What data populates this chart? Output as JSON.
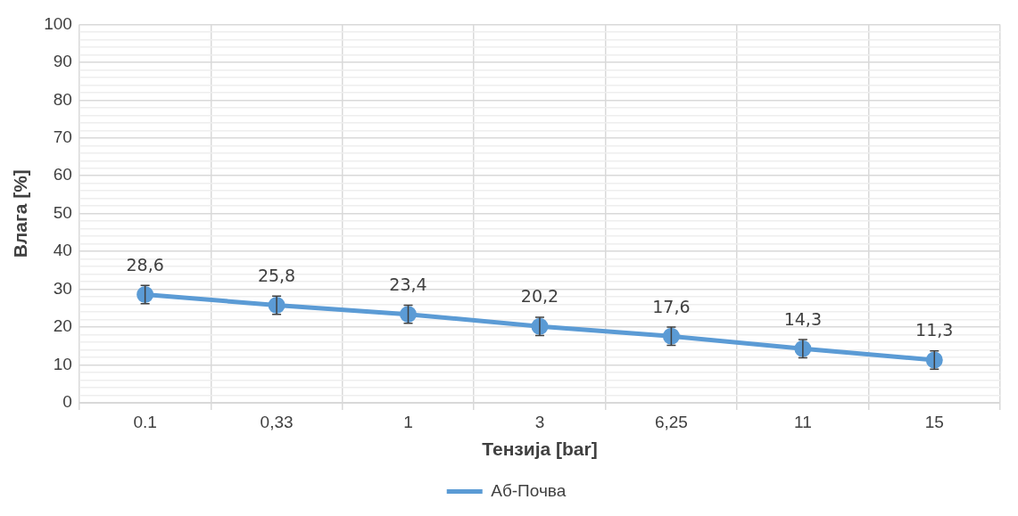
{
  "chart_data": {
    "type": "line",
    "xlabel": "Тензија [bar]",
    "ylabel": "Влага [%]",
    "categories": [
      "0.1",
      "0,33",
      "1",
      "3",
      "6,25",
      "11",
      "15"
    ],
    "series": [
      {
        "name": "Аб-Почва",
        "color": "#5b9bd5",
        "values": [
          28.6,
          25.8,
          23.4,
          20.2,
          17.6,
          14.3,
          11.3
        ],
        "errors": [
          2.4,
          2.4,
          2.4,
          2.4,
          2.4,
          2.4,
          2.4
        ],
        "value_labels": [
          "28,6",
          "25,8",
          "23,4",
          "20,2",
          "17,6",
          "14,3",
          "11,3"
        ]
      }
    ],
    "ylim": [
      0,
      100
    ],
    "yticks": [
      0,
      {
        "value": 2,
        "label": null
      },
      {
        "value": 4,
        "label": null
      },
      {
        "value": 6,
        "label": null
      },
      {
        "value": 8,
        "label": null
      },
      10,
      {
        "value": 12,
        "label": null
      },
      {
        "value": 14,
        "label": null
      },
      {
        "value": 16,
        "label": null
      },
      {
        "value": 18,
        "label": null
      },
      20,
      {
        "value": 22,
        "label": null
      },
      {
        "value": 24,
        "label": null
      },
      {
        "value": 26,
        "label": null
      },
      {
        "value": 28,
        "label": null
      },
      30,
      {
        "value": 32,
        "label": null
      },
      {
        "value": 34,
        "label": null
      },
      {
        "value": 36,
        "label": null
      },
      {
        "value": 38,
        "label": null
      },
      40,
      {
        "value": 42,
        "label": null
      },
      {
        "value": 44,
        "label": null
      },
      {
        "value": 46,
        "label": null
      },
      {
        "value": 48,
        "label": null
      },
      50,
      {
        "value": 52,
        "label": null
      },
      {
        "value": 54,
        "label": null
      },
      {
        "value": 56,
        "label": null
      },
      {
        "value": 58,
        "label": null
      },
      60,
      {
        "value": 62,
        "label": null
      },
      {
        "value": 64,
        "label": null
      },
      {
        "value": 66,
        "label": null
      },
      {
        "value": 68,
        "label": null
      },
      70,
      {
        "value": 72,
        "label": null
      },
      {
        "value": 74,
        "label": null
      },
      {
        "value": 76,
        "label": null
      },
      {
        "value": 78,
        "label": null
      },
      80,
      {
        "value": 82,
        "label": null
      },
      {
        "value": 84,
        "label": null
      },
      {
        "value": 86,
        "label": null
      },
      {
        "value": 88,
        "label": null
      },
      90,
      {
        "value": 92,
        "label": null
      },
      {
        "value": 94,
        "label": null
      },
      {
        "value": 96,
        "label": null
      },
      {
        "value": 98,
        "label": null
      },
      100
    ],
    "grid": true,
    "legend": "bottom",
    "marker": "circle",
    "line_style": "solid"
  }
}
